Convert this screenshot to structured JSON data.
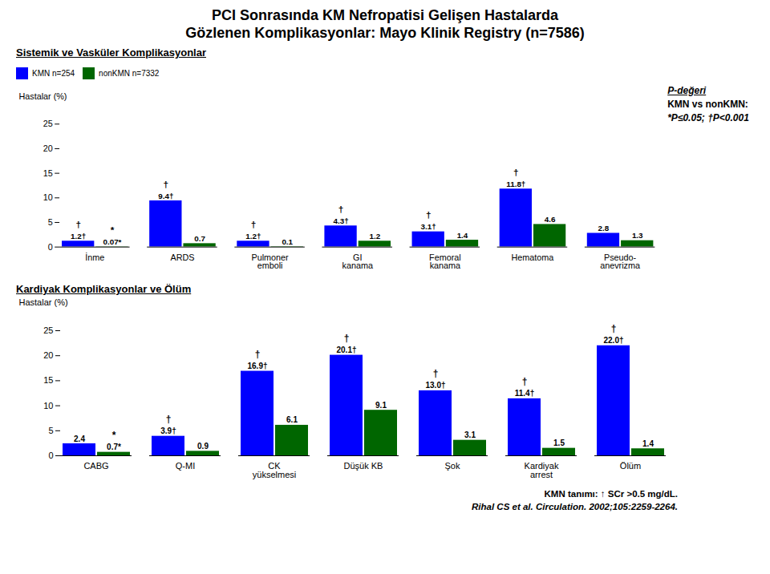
{
  "title": "PCI Sonrasında KM Nefropatisi Gelişen Hastalarda",
  "subtitle": "Gözlenen Komplikasyonlar: Mayo Klinik Registry (n=7586)",
  "annotations": [
    "P-değeri",
    "KMN vs nonKMN:",
    "*P≤0.05; †P<0.001"
  ],
  "footnotes": [
    "KMN tanımı: ↑ SCr >0.5 mg/dL.",
    "Rihal CS et al. Circulation. 2002;105:2259-2264."
  ],
  "chart_data": [
    {
      "type": "bar",
      "title": "Sistemik ve Vasküler Komplikasyonlar",
      "ylabel": "Hastalar (%)",
      "categories": [
        "İnme",
        "ARDS",
        "Pulmoner\nemboli",
        "GI\nkanama",
        "Femoral\nkanama",
        "Hematoma",
        "Pseudo-\nanevrizma"
      ],
      "series": [
        {
          "name": "KMN n=254",
          "color": "#0000FF",
          "values": [
            1.2,
            9.4,
            1.2,
            4.3,
            3.1,
            11.8,
            2.8
          ],
          "value_labels": [
            "1.2†",
            "9.4†",
            "1.2†",
            "4.3†",
            "3.1†",
            "11.8†",
            "2.8"
          ],
          "significance": [
            "†",
            "†",
            "†",
            "†",
            "†",
            "†",
            null
          ]
        },
        {
          "name": "nonKMN n=7332",
          "color": "#006600",
          "values": [
            0.07,
            0.7,
            0.1,
            1.2,
            1.4,
            4.6,
            1.3
          ],
          "value_labels": [
            "0.07*",
            "0.7",
            "0.1",
            "1.2",
            "1.4",
            "4.6",
            "1.3"
          ],
          "significance": [
            "*",
            null,
            null,
            null,
            null,
            null,
            null
          ]
        }
      ],
      "ylim": [
        0,
        25
      ],
      "yticks": [
        0,
        5,
        10,
        15,
        20,
        25
      ],
      "data_labels": true,
      "legend": "top left"
    },
    {
      "type": "bar",
      "title": "Kardiyak Komplikasyonlar ve Ölüm",
      "ylabel": "Hastalar (%)",
      "categories": [
        "CABG",
        "Q-MI",
        "CK\nyükselmesi",
        "Düşük KB",
        "Şok",
        "Kardiyak\narrest",
        "Ölüm"
      ],
      "series": [
        {
          "name": "KMN n=254",
          "color": "#0000FF",
          "values": [
            2.4,
            3.9,
            16.9,
            20.1,
            13.0,
            11.4,
            22.0
          ],
          "value_labels": [
            "2.4",
            "3.9†",
            "16.9†",
            "20.1†",
            "13.0†",
            "11.4†",
            "22.0†"
          ],
          "significance": [
            null,
            "†",
            "†",
            "†",
            "†",
            "†",
            "†"
          ]
        },
        {
          "name": "nonKMN n=7332",
          "color": "#006600",
          "values": [
            0.7,
            0.9,
            6.1,
            9.1,
            3.1,
            1.5,
            1.4
          ],
          "value_labels": [
            "0.7*",
            "0.9",
            "6.1",
            "9.1",
            "3.1",
            "1.5",
            "1.4"
          ],
          "significance": [
            "*",
            null,
            null,
            null,
            null,
            null,
            null
          ]
        }
      ],
      "ylim": [
        0,
        25
      ],
      "yticks": [
        0,
        5,
        10,
        15,
        20,
        25
      ],
      "data_labels": true
    }
  ]
}
